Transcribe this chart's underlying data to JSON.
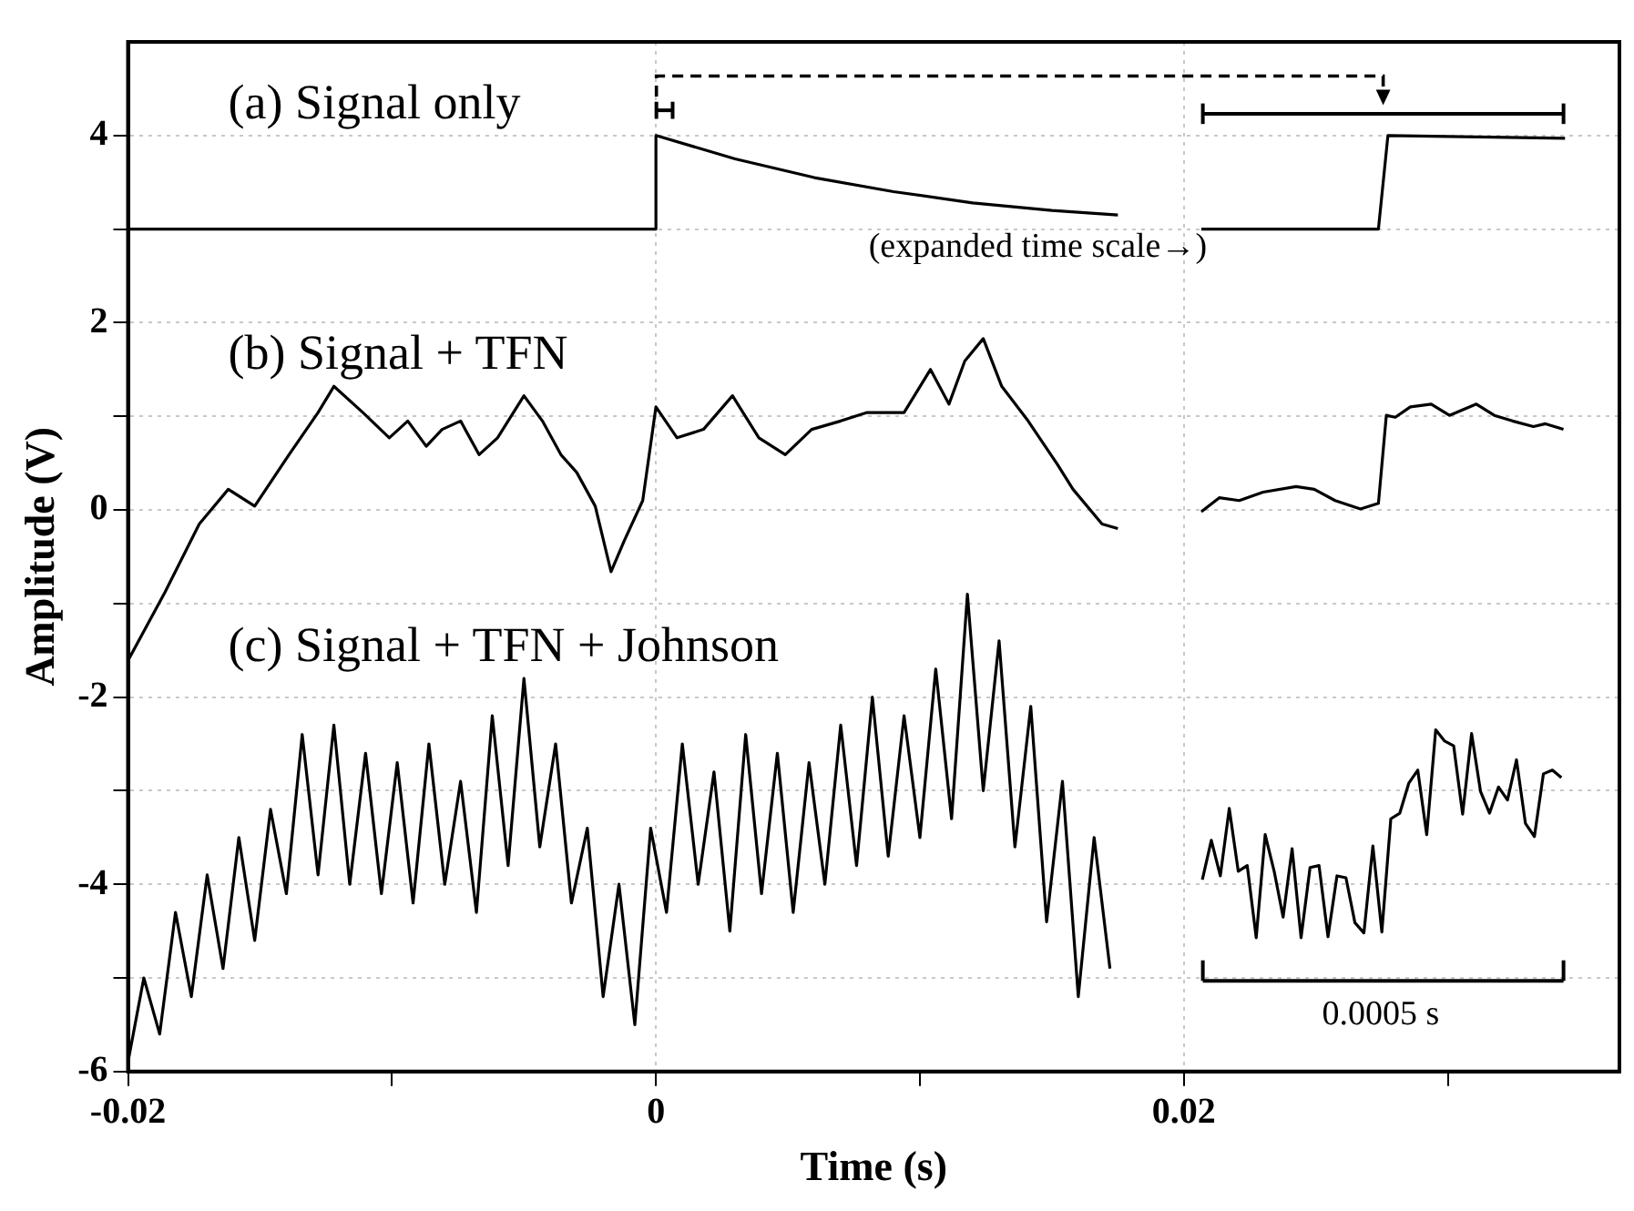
{
  "chart_data": {
    "type": "line",
    "xlabel": "Time (s)",
    "ylabel": "Amplitude (V)",
    "xlim": [
      -0.02,
      0.0365
    ],
    "ylim": [
      -6,
      5
    ],
    "xticks": [
      -0.02,
      {
        "value": -0.01,
        "label": null
      },
      0,
      {
        "value": 0.01,
        "label": null
      },
      0.02,
      {
        "value": 0.03,
        "label": null
      }
    ],
    "yticks": [
      -6,
      {
        "value": -5,
        "label": null
      },
      -4,
      {
        "value": -3,
        "label": null
      },
      -2,
      {
        "value": -1,
        "label": null
      },
      0,
      {
        "value": 1,
        "label": null
      },
      2,
      {
        "value": 3,
        "label": null
      },
      4
    ],
    "grid": true,
    "legend": false,
    "marker": "none",
    "line_style": "solid",
    "annotations": [
      "(expanded time scale→)",
      "0.0005 s"
    ],
    "series": [
      {
        "name": "(a) Signal only",
        "color": "#000000",
        "x": [
          -0.02,
          0,
          0,
          0.003,
          0.006,
          0.009,
          0.012,
          0.015,
          0.0175,
          0.02,
          0.02066,
          0.02737,
          0.02773,
          0.03444
        ],
        "values": [
          3,
          3,
          4,
          3.75,
          3.55,
          3.4,
          3.28,
          3.2,
          3.15,
          null,
          3,
          3,
          4,
          3.97
        ]
      },
      {
        "name": "(b) Signal + TFN",
        "color": "#000000",
        "x": [
          -0.02,
          -0.0186,
          -0.0173,
          -0.0162,
          -0.0152,
          -0.0139,
          -0.0128,
          -0.0122,
          -0.0111,
          -0.0101,
          -0.0094,
          -0.0087,
          -0.0081,
          -0.0074,
          -0.0067,
          -0.006,
          -0.005,
          -0.0043,
          -0.0036,
          -0.003,
          -0.0023,
          -0.0017,
          -0.0012,
          -0.0005,
          0,
          0.0008,
          0.0018,
          0.0029,
          0.0039,
          0.0049,
          0.0059,
          0.007,
          0.008,
          0.0094,
          0.0104,
          0.0111,
          0.0117,
          0.0124,
          0.0131,
          0.0141,
          0.0152,
          0.0158,
          0.0169,
          0.0175,
          0.02,
          0.02066,
          0.02134,
          0.0221,
          0.023,
          0.02425,
          0.02494,
          0.02573,
          0.02669,
          0.02737,
          0.02767,
          0.02801,
          0.02858,
          0.02937,
          0.03006,
          0.03108,
          0.03176,
          0.03245,
          0.03324,
          0.0337,
          0.03438
        ],
        "values": [
          -1.61,
          -0.88,
          -0.15,
          0.22,
          0.04,
          0.59,
          1.04,
          1.32,
          1.04,
          0.77,
          0.95,
          0.68,
          0.86,
          0.95,
          0.59,
          0.77,
          1.22,
          0.95,
          0.59,
          0.4,
          0.04,
          -0.66,
          -0.33,
          0.1,
          1.1,
          0.77,
          0.86,
          1.22,
          0.77,
          0.59,
          0.86,
          0.95,
          1.04,
          1.04,
          1.5,
          1.13,
          1.59,
          1.83,
          1.32,
          0.95,
          0.49,
          0.22,
          -0.15,
          -0.2,
          null,
          -0.02,
          0.13,
          0.1,
          0.19,
          0.25,
          0.22,
          0.1,
          0.01,
          0.07,
          1.01,
          0.99,
          1.1,
          1.13,
          1.01,
          1.13,
          1.01,
          0.95,
          0.89,
          0.92,
          0.86
        ]
      },
      {
        "name": "(c) Signal + TFN + Johnson",
        "color": "#000000",
        "x": [
          -0.02,
          -0.0194,
          -0.0188,
          -0.0182,
          -0.0176,
          -0.017,
          -0.0164,
          -0.0158,
          -0.0152,
          -0.0146,
          -0.014,
          -0.0134,
          -0.0128,
          -0.0122,
          -0.0116,
          -0.011,
          -0.0104,
          -0.0098,
          -0.0092,
          -0.0086,
          -0.008,
          -0.0074,
          -0.0068,
          -0.0062,
          -0.0056,
          -0.005,
          -0.0044,
          -0.0038,
          -0.0032,
          -0.0026,
          -0.002,
          -0.0014,
          -0.0008,
          -0.0002,
          0.0004,
          0.001,
          0.0016,
          0.0022,
          0.0028,
          0.0034,
          0.004,
          0.0046,
          0.0052,
          0.0058,
          0.0064,
          0.007,
          0.0076,
          0.0082,
          0.0088,
          0.0094,
          0.01,
          0.0106,
          0.0112,
          0.0118,
          0.0124,
          0.013,
          0.0136,
          0.0142,
          0.0148,
          0.0154,
          0.016,
          0.0166,
          0.0172,
          0.02,
          0.0207,
          0.02104,
          0.02138,
          0.02172,
          0.02206,
          0.0224,
          0.02274,
          0.02308,
          0.02342,
          0.02376,
          0.0241,
          0.02444,
          0.02478,
          0.02512,
          0.02546,
          0.0258,
          0.02614,
          0.02648,
          0.02682,
          0.02716,
          0.0275,
          0.02784,
          0.02818,
          0.02852,
          0.02886,
          0.0292,
          0.02954,
          0.02988,
          0.03022,
          0.03056,
          0.0309,
          0.03124,
          0.03158,
          0.03192,
          0.03226,
          0.0326,
          0.03294,
          0.03328,
          0.03362,
          0.03396,
          0.0343
        ],
        "values": [
          -5.9,
          -5.0,
          -5.6,
          -4.3,
          -5.2,
          -3.9,
          -4.9,
          -3.5,
          -4.6,
          -3.2,
          -4.1,
          -2.4,
          -3.9,
          -2.3,
          -4.0,
          -2.6,
          -4.1,
          -2.7,
          -4.2,
          -2.5,
          -4.0,
          -2.9,
          -4.3,
          -2.2,
          -3.8,
          -1.8,
          -3.6,
          -2.5,
          -4.2,
          -3.4,
          -5.2,
          -4.0,
          -5.5,
          -3.4,
          -4.3,
          -2.5,
          -4.0,
          -2.8,
          -4.5,
          -2.4,
          -4.1,
          -2.6,
          -4.3,
          -2.7,
          -4.0,
          -2.3,
          -3.8,
          -2.0,
          -3.7,
          -2.2,
          -3.5,
          -1.7,
          -3.3,
          -0.9,
          -3.0,
          -1.4,
          -3.6,
          -2.1,
          -4.4,
          -2.9,
          -5.2,
          -3.5,
          -4.9,
          null,
          -3.95,
          -3.53,
          -3.91,
          -3.19,
          -3.86,
          -3.8,
          -4.57,
          -3.47,
          -3.86,
          -4.35,
          -3.62,
          -4.57,
          -3.82,
          -3.8,
          -4.56,
          -3.91,
          -3.93,
          -4.41,
          -4.52,
          -3.59,
          -4.51,
          -3.3,
          -3.24,
          -2.92,
          -2.78,
          -3.47,
          -2.35,
          -2.47,
          -2.52,
          -3.25,
          -2.39,
          -3.01,
          -3.24,
          -2.96,
          -3.1,
          -2.67,
          -3.35,
          -3.49,
          -2.82,
          -2.78,
          -2.86
        ]
      }
    ]
  }
}
